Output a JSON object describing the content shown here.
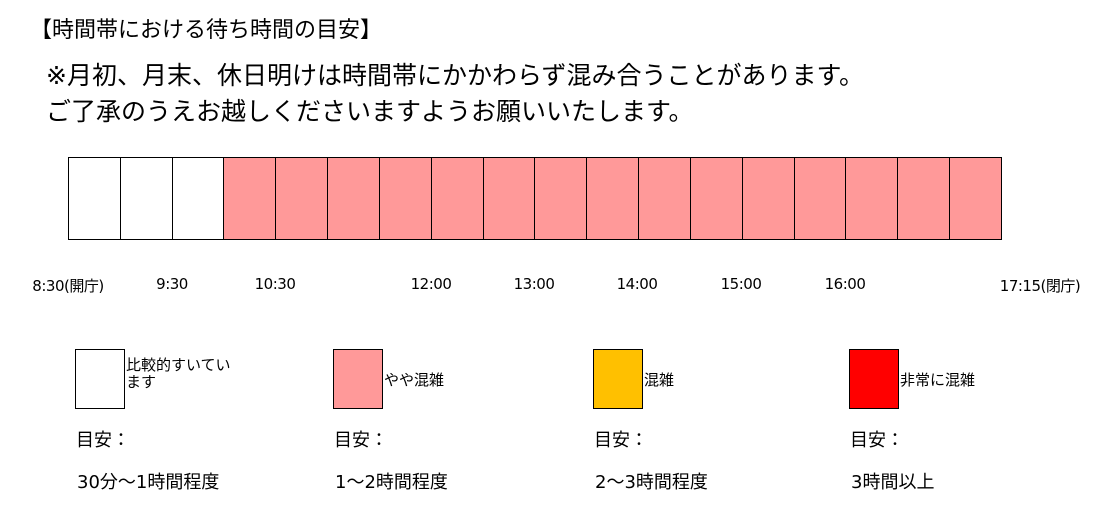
{
  "header": {
    "title": "【時間帯における待ち時間の目安】",
    "notes": [
      "※月初、月末、休日明けは時間帯にかかわらず混み合うことがあります。",
      "ご了承のうえお越しくださいますようお願いいたします。"
    ]
  },
  "times": [
    "8:30(開庁)",
    "9:30",
    "10:30",
    "12:00",
    "13:00",
    "14:00",
    "15:00",
    "16:00",
    "17:15(閉庁)"
  ],
  "legend": [
    {
      "label": "比較的すいています",
      "caption": "目安：",
      "estimate": "30分～1時間程度"
    },
    {
      "label": "やや混雑",
      "caption": "目安：",
      "estimate": "1～2時間程度"
    },
    {
      "label": "混雑",
      "caption": "目安：",
      "estimate": "2～3時間程度"
    },
    {
      "label": "非常に混雑",
      "caption": "目安：",
      "estimate": "3時間以上"
    }
  ]
}
